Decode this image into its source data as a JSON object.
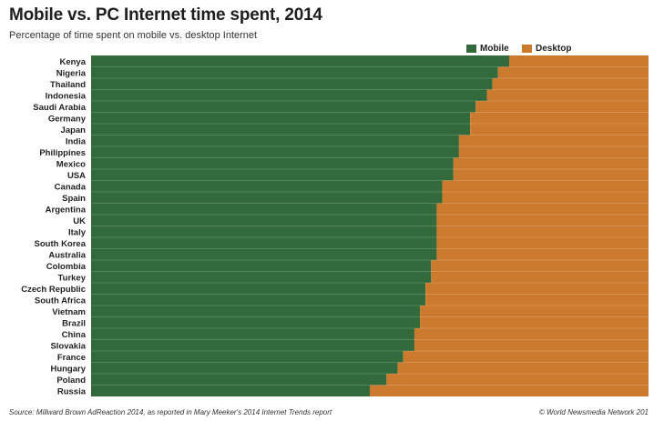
{
  "header": {
    "title": "Mobile vs. PC Internet time spent, 2014",
    "subtitle": "Percentage of time spent on mobile vs. desktop Internet"
  },
  "legend": {
    "mobile_label": "Mobile",
    "desktop_label": "Desktop"
  },
  "colors": {
    "mobile": "#336a3c",
    "desktop": "#cc7a2d"
  },
  "footer": {
    "source": "Source: Millward Brown AdReaction 2014, as reported in Mary Meeker's 2014 Internet Trends report",
    "credit": "© World Newsmedia Network 201"
  },
  "chart_data": {
    "type": "bar",
    "orientation": "horizontal",
    "stacked": true,
    "percent_stacked": true,
    "title": "Mobile vs. PC Internet time spent, 2014",
    "subtitle": "Percentage of time spent on mobile vs. desktop Internet",
    "legend_position": "top-right",
    "xlim": [
      0,
      100
    ],
    "categories": [
      "Kenya",
      "Nigeria",
      "Thailand",
      "Indonesia",
      "Saudi Arabia",
      "Germany",
      "Japan",
      "India",
      "Philippines",
      "Mexico",
      "USA",
      "Canada",
      "Spain",
      "Argentina",
      "UK",
      "Italy",
      "South Korea",
      "Australia",
      "Colombia",
      "Turkey",
      "Czech Republic",
      "South Africa",
      "Vietnam",
      "Brazil",
      "China",
      "Slovakia",
      "France",
      "Hungary",
      "Poland",
      "Russia"
    ],
    "series": [
      {
        "name": "Mobile",
        "values": [
          75,
          73,
          72,
          71,
          69,
          68,
          68,
          66,
          66,
          65,
          65,
          63,
          63,
          62,
          62,
          62,
          62,
          62,
          61,
          61,
          60,
          60,
          59,
          59,
          58,
          58,
          56,
          55,
          53,
          50
        ]
      },
      {
        "name": "Desktop",
        "values": [
          25,
          27,
          28,
          29,
          31,
          32,
          32,
          34,
          34,
          35,
          35,
          37,
          37,
          38,
          38,
          38,
          38,
          38,
          39,
          39,
          40,
          40,
          41,
          41,
          42,
          42,
          44,
          45,
          47,
          50
        ]
      }
    ]
  }
}
